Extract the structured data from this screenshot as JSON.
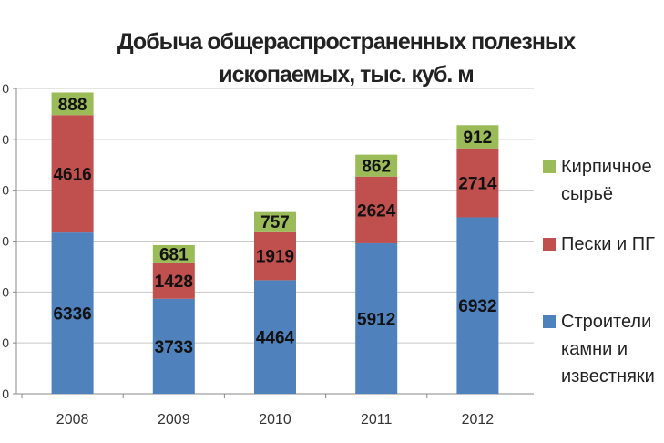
{
  "chart_data": {
    "type": "bar",
    "stacked": true,
    "title": "Добыча общераспространенных полезных ископаемых, тыс. куб. м",
    "title_lines": [
      "Добыча общераспространенных полезных",
      "ископаемых, тыс. куб. м"
    ],
    "categories": [
      "2008",
      "2009",
      "2010",
      "2011",
      "2012"
    ],
    "series": [
      {
        "name": "Строительные камни и известняки",
        "legend_label": "Строители\nкамни и\nизвестняки",
        "color": "#4f81bd",
        "values": [
          6336,
          3733,
          4464,
          5912,
          6932
        ]
      },
      {
        "name": "Пески и ПГС",
        "legend_label": "Пески и ПГ",
        "color": "#c0504d",
        "values": [
          4616,
          1428,
          1919,
          2624,
          2714
        ]
      },
      {
        "name": "Кирпичное сырьё",
        "legend_label": "Кирпичное\nсырьё",
        "color": "#9bbb59",
        "values": [
          888,
          681,
          757,
          862,
          912
        ]
      }
    ],
    "y_ticks": [
      "0",
      "0",
      "0",
      "0",
      "0",
      "0",
      "0"
    ],
    "ylim": [
      0,
      12000
    ],
    "grid": true,
    "legend_position": "right"
  }
}
